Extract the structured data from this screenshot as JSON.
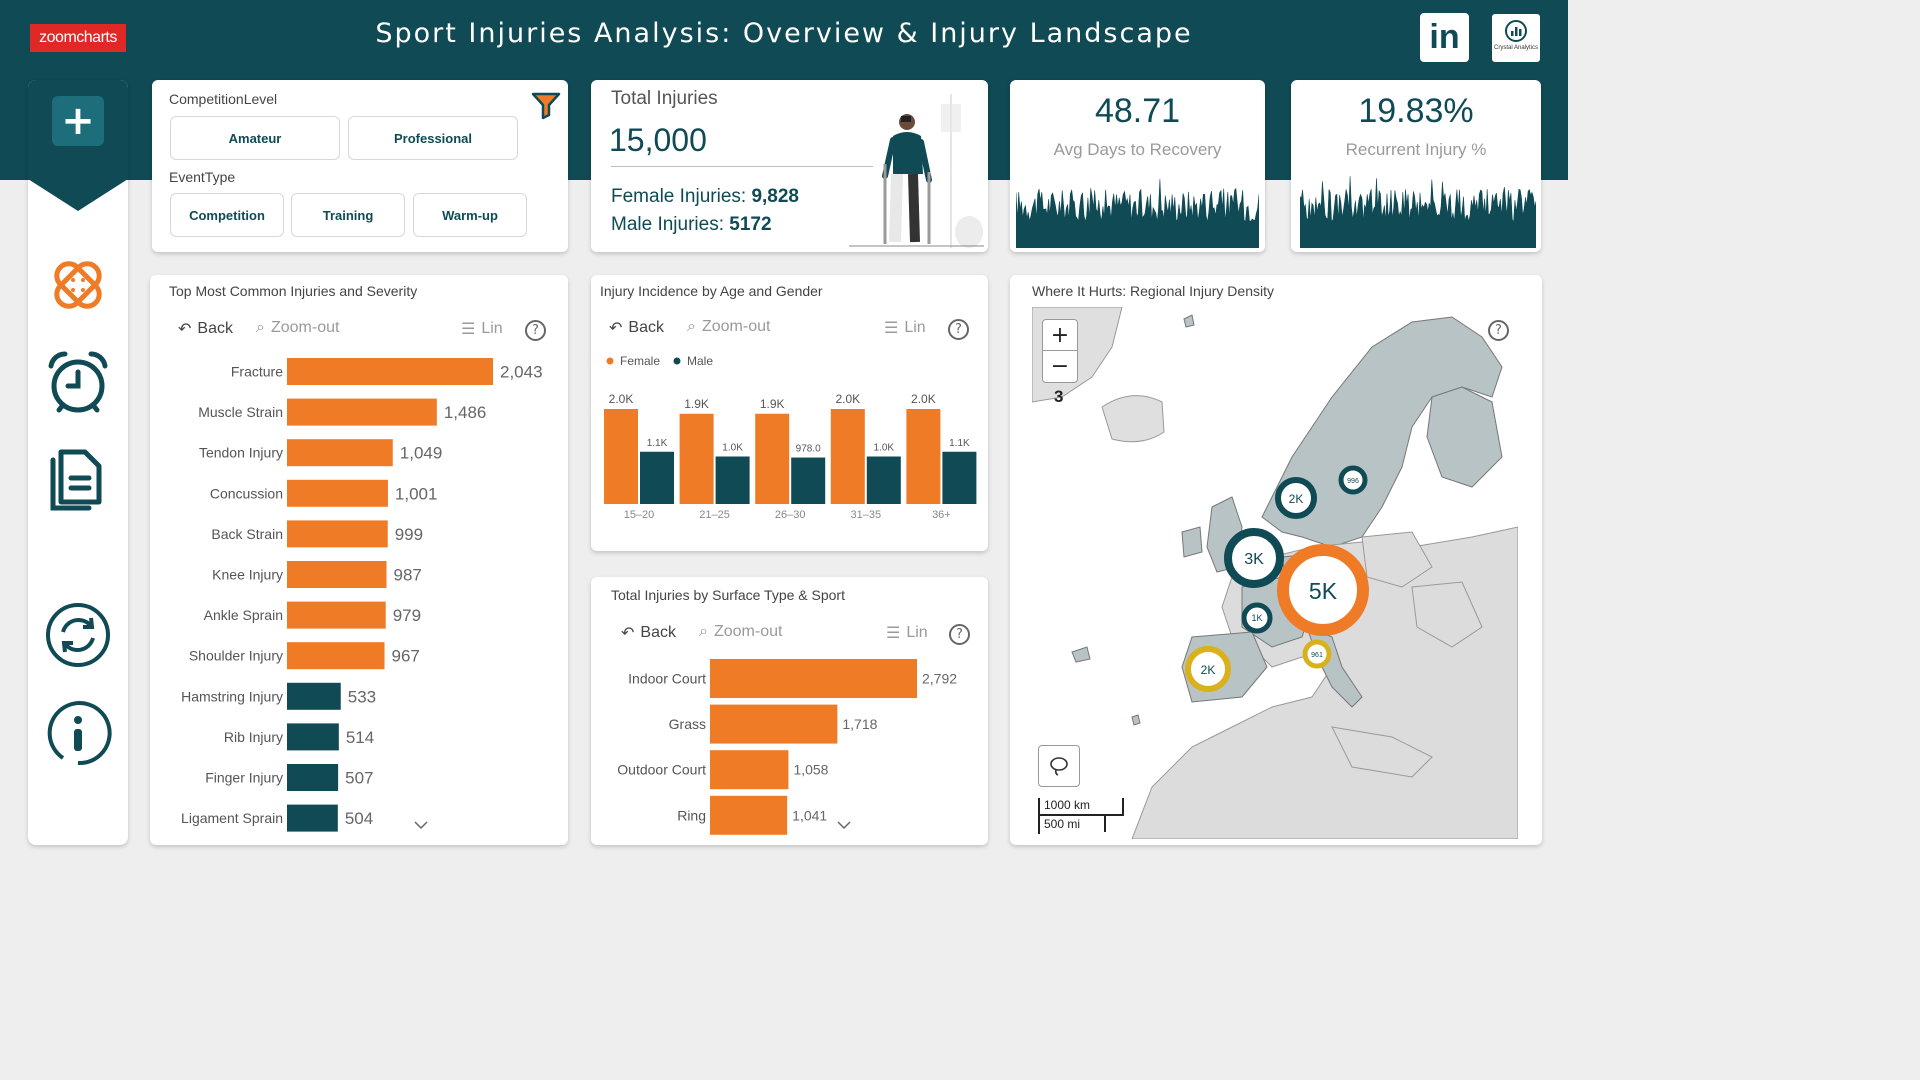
{
  "header": {
    "logo_text": "zoomcharts",
    "title_main": "Sport Injuries Analysis:",
    "title_sub": " Overview & Injury Landscape",
    "linkedin_text": "in",
    "badge_text": "Crystal Analytics",
    "band_color": "#0f4a55"
  },
  "sidebar": {
    "icons": [
      "plus-icon",
      "bandage-icon",
      "alarm-clock-icon",
      "documents-icon",
      "refresh-icon",
      "info-icon"
    ]
  },
  "filters": {
    "competition_title": "CompetitionLevel",
    "competition_options": [
      "Amateur",
      "Professional"
    ],
    "event_title": "EventType",
    "event_options": [
      "Competition",
      "Training",
      "Warm-up"
    ]
  },
  "toolbar": {
    "back": "Back",
    "zoom_out": "Zoom-out",
    "lin": "Lin",
    "help": "?"
  },
  "total": {
    "title": "Total Injuries",
    "value": "15,000",
    "female_label": "Female Injuries: ",
    "female_value": "9,828",
    "male_label": "Male Injuries: ",
    "male_value": "5172"
  },
  "kpi_recovery": {
    "value": "48.71",
    "label": "Avg Days to Recovery"
  },
  "kpi_recurrent": {
    "value": "19.83%",
    "label": "Recurrent Injury %"
  },
  "colors": {
    "orange": "#f07b27",
    "teal": "#0f4a55",
    "gold": "#d8b11c",
    "grey": "#9a9a9a"
  },
  "chart_data": [
    {
      "type": "bar",
      "orientation": "horizontal",
      "title": "Top Most Common Injuries and Severity",
      "categories": [
        "Fracture",
        "Muscle Strain",
        "Tendon Injury",
        "Concussion",
        "Back Strain",
        "Knee Injury",
        "Ankle Sprain",
        "Shoulder Injury",
        "Hamstring Injury",
        "Rib Injury",
        "Finger Injury",
        "Ligament Sprain"
      ],
      "values": [
        2043,
        1486,
        1049,
        1001,
        999,
        987,
        979,
        967,
        533,
        514,
        507,
        504
      ],
      "labels": [
        "2,043",
        "1,486",
        "1,049",
        "1,001",
        "999",
        "987",
        "979",
        "967",
        "533",
        "514",
        "507",
        "504"
      ],
      "highlight": [
        true,
        true,
        true,
        true,
        true,
        true,
        true,
        true,
        false,
        false,
        false,
        false
      ]
    },
    {
      "type": "bar",
      "title": "Injury Incidence by Age and Gender",
      "categories": [
        "15–20",
        "21–25",
        "26–30",
        "31–35",
        "36+"
      ],
      "series": [
        {
          "name": "Female",
          "values": [
            2000,
            1900,
            1900,
            2000,
            2000
          ],
          "labels": [
            "2.0K",
            "1.9K",
            "1.9K",
            "2.0K",
            "2.0K"
          ]
        },
        {
          "name": "Male",
          "values": [
            1100,
            1000,
            978,
            1000,
            1100
          ],
          "labels": [
            "1.1K",
            "1.0K",
            "978.0",
            "1.0K",
            "1.1K"
          ]
        }
      ],
      "legend": "top-left"
    },
    {
      "type": "bar",
      "orientation": "horizontal",
      "title": "Total Injuries by Surface Type & Sport",
      "categories": [
        "Indoor Court",
        "Grass",
        "Outdoor Court",
        "Ring"
      ],
      "values": [
        2792,
        1718,
        1058,
        1041
      ],
      "labels": [
        "2,792",
        "1,718",
        "1,058",
        "1,041"
      ]
    },
    {
      "type": "map",
      "title": "Where It Hurts: Regional Injury Density",
      "zoom_level": "3",
      "zoom_in": "+",
      "zoom_out": "−",
      "scale_km": "1000 km",
      "scale_mi": "500 mi",
      "bubbles": [
        {
          "label": "5K",
          "color": "orange"
        },
        {
          "label": "3K",
          "color": "teal"
        },
        {
          "label": "2K",
          "color": "teal"
        },
        {
          "label": "2K",
          "color": "gold"
        },
        {
          "label": "1K",
          "color": "teal"
        },
        {
          "label": "996",
          "color": "teal"
        },
        {
          "label": "961",
          "color": "gold"
        }
      ]
    }
  ]
}
